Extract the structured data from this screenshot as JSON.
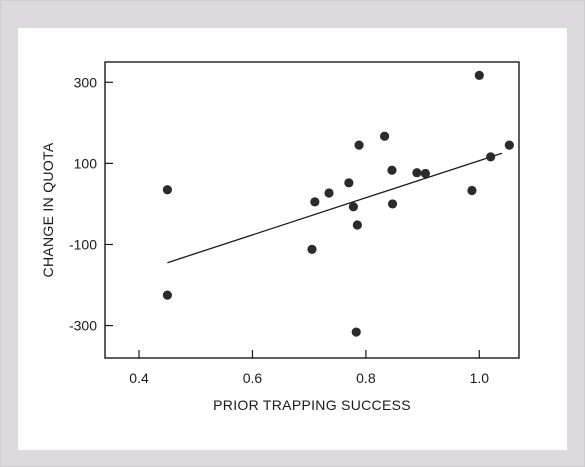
{
  "chart_data": {
    "type": "scatter",
    "xlabel": "PRIOR TRAPPING SUCCESS",
    "ylabel": "CHANGE IN QUOTA",
    "xlim": [
      0.34,
      1.07
    ],
    "ylim": [
      -380,
      350
    ],
    "x_ticks": [
      0.4,
      0.6,
      0.8,
      1.0
    ],
    "x_tick_labels": [
      "0.4",
      "0.6",
      "0.8",
      "1.0"
    ],
    "y_ticks": [
      300,
      100,
      -100,
      -300
    ],
    "y_tick_labels": [
      "300",
      "100",
      "-100",
      "-300"
    ],
    "grid": false,
    "legend": "none",
    "points": [
      {
        "x": 0.45,
        "y": 35
      },
      {
        "x": 0.45,
        "y": -225
      },
      {
        "x": 0.705,
        "y": -112
      },
      {
        "x": 0.71,
        "y": 5
      },
      {
        "x": 0.735,
        "y": 27
      },
      {
        "x": 0.77,
        "y": 52
      },
      {
        "x": 0.778,
        "y": -7
      },
      {
        "x": 0.785,
        "y": -52
      },
      {
        "x": 0.788,
        "y": 145
      },
      {
        "x": 0.783,
        "y": -316
      },
      {
        "x": 0.833,
        "y": 167
      },
      {
        "x": 0.846,
        "y": 83
      },
      {
        "x": 0.847,
        "y": 0
      },
      {
        "x": 0.89,
        "y": 77
      },
      {
        "x": 0.905,
        "y": 75
      },
      {
        "x": 0.987,
        "y": 33
      },
      {
        "x": 1.0,
        "y": 317
      },
      {
        "x": 1.02,
        "y": 116
      },
      {
        "x": 1.053,
        "y": 145
      }
    ],
    "fit_line": {
      "x": [
        0.45,
        1.04
      ],
      "y": [
        -145,
        125
      ]
    },
    "colors": {
      "marker": "#2b2b2b",
      "line": "#1a1a1a",
      "axes": "#1a1a1a"
    }
  }
}
